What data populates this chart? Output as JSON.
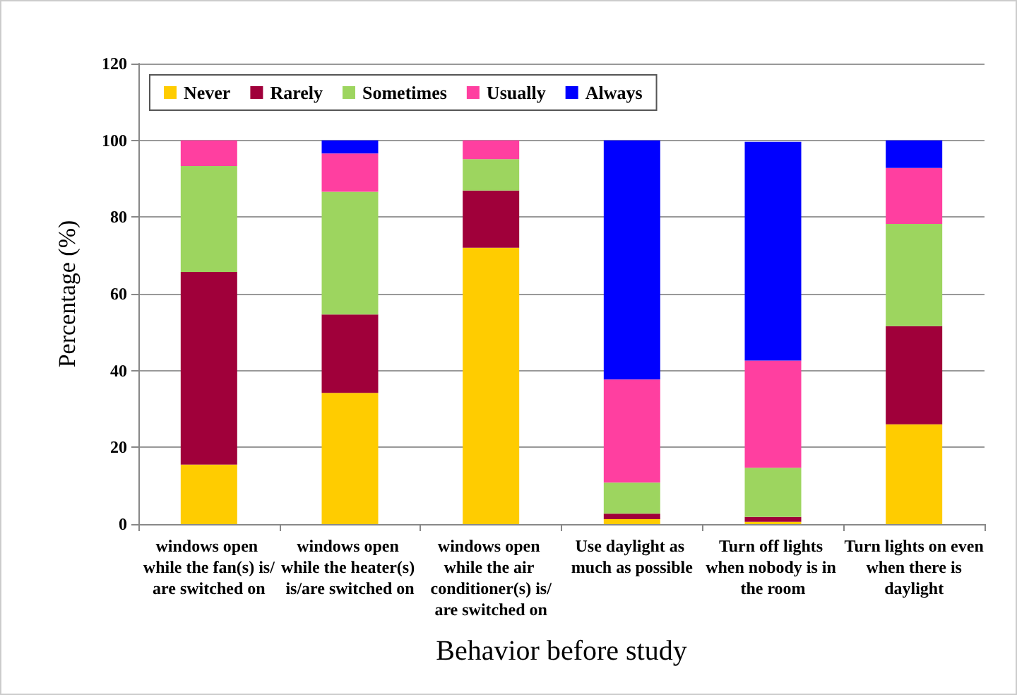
{
  "chart_data": {
    "type": "bar",
    "stacked": true,
    "xlabel": "Behavior before study",
    "ylabel": "Percentage (%)",
    "categories": [
      "windows open while the fan(s) is/are switched on",
      "windows open while the heater(s) is/are switched on",
      "windows open while the air conditioner(s) is/are switched on",
      "Use daylight as much as possible",
      "Turn off lights when nobody is in the room",
      "Turn lights on even when there is daylight"
    ],
    "series": [
      {
        "name": "Never",
        "color": "#ffcc00",
        "values": [
          15.5,
          34.2,
          72.0,
          1.3,
          0.6,
          26.0
        ]
      },
      {
        "name": "Rarely",
        "color": "#a0003a",
        "values": [
          50.2,
          20.4,
          14.9,
          1.4,
          1.3,
          25.6
        ]
      },
      {
        "name": "Sometimes",
        "color": "#9dd55f",
        "values": [
          27.6,
          32.0,
          8.2,
          8.1,
          12.8,
          26.6
        ]
      },
      {
        "name": "Usually",
        "color": "#ff3fa0",
        "values": [
          6.7,
          10.0,
          4.9,
          26.9,
          27.9,
          14.6
        ]
      },
      {
        "name": "Always",
        "color": "#0000ff",
        "values": [
          0,
          3.4,
          0,
          62.3,
          57.0,
          7.2
        ]
      }
    ],
    "ylim": [
      0,
      120
    ],
    "yticks": [
      0,
      20,
      40,
      60,
      80,
      100,
      120
    ],
    "grid": "y",
    "legend": "top"
  }
}
